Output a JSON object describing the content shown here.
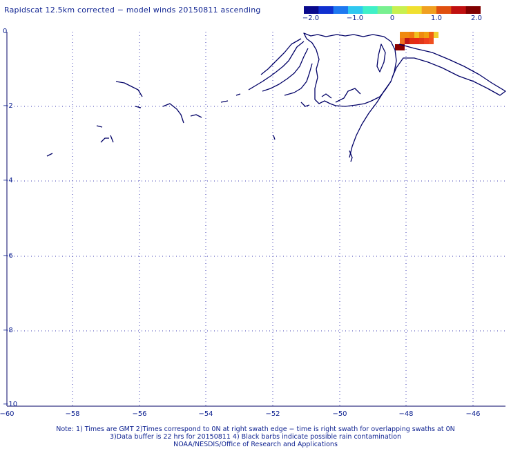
{
  "title": "Rapidscat 12.5km corrected − model winds 20150811 ascending",
  "colorbar": {
    "labels": [
      "−2.0",
      "−1.0",
      "0",
      "1.0",
      "2.0"
    ],
    "min": -2.0,
    "max": 2.0,
    "colors": [
      "#0a0a8c",
      "#1030d0",
      "#1e78f0",
      "#30c8f0",
      "#40f0c8",
      "#78f090",
      "#c8f050",
      "#f0e030",
      "#f0a020",
      "#e05010",
      "#c01010",
      "#800000"
    ]
  },
  "map": {
    "y_ticks": [
      "0",
      "−2",
      "−4",
      "−6",
      "−8",
      "−10"
    ],
    "x_ticks": [
      "−60",
      "−58",
      "−56",
      "−54",
      "−52",
      "−50",
      "−48",
      "−46"
    ],
    "grid": "dotted",
    "coast_color": "#000066",
    "cells": [
      {
        "row": 0,
        "col": 0,
        "color": "#f08a10"
      },
      {
        "row": 0,
        "col": 1,
        "color": "#f08a10"
      },
      {
        "row": 0,
        "col": 2,
        "color": "#f07a10"
      },
      {
        "row": 0,
        "col": 3,
        "color": "#f0c020"
      },
      {
        "row": 0,
        "col": 4,
        "color": "#f08a10"
      },
      {
        "row": 0,
        "col": 5,
        "color": "#f0a010"
      },
      {
        "row": 0,
        "col": 6,
        "color": "#f06010"
      },
      {
        "row": 0,
        "col": 7,
        "color": "#f0d030"
      },
      {
        "row": 1,
        "col": 0,
        "color": "#f07020"
      },
      {
        "row": 1,
        "col": 1,
        "color": "#c01818"
      },
      {
        "row": 1,
        "col": 2,
        "color": "#e03010"
      },
      {
        "row": 1,
        "col": 3,
        "color": "#e82818"
      },
      {
        "row": 1,
        "col": 4,
        "color": "#e03818"
      },
      {
        "row": 1,
        "col": 5,
        "color": "#f04020"
      },
      {
        "row": 1,
        "col": 6,
        "color": "#f05020"
      },
      {
        "row": 2,
        "col": -1,
        "color": "#8a0000"
      },
      {
        "row": 2,
        "col": 0,
        "color": "#8a0000"
      }
    ]
  },
  "notes": {
    "line1": "Note: 1) Times are GMT 2)Times correspond to 0N at right swath edge − time is right swath for overlapping swaths at 0N",
    "line2": "3)Data buffer is 22 hrs for 20150811 4) Black barbs indicate possible rain contamination",
    "line3": "NOAA/NESDIS/Office of Research and Applications"
  }
}
